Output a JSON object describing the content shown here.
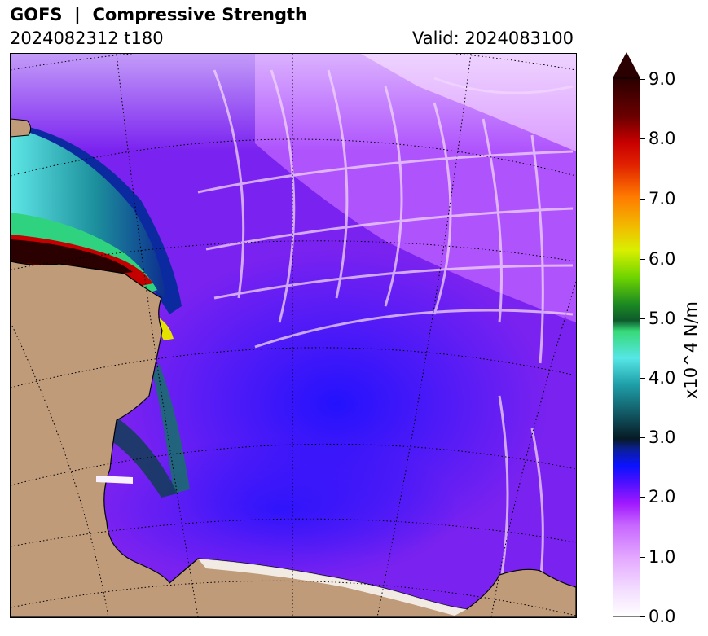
{
  "title": "GOFS  |  Compressive Strength",
  "run": "2024082312 t180",
  "valid": "Valid: 2024083100",
  "colorbar": {
    "label": "x10^4 N/m",
    "ticks": [
      "0.0",
      "1.0",
      "2.0",
      "3.0",
      "4.0",
      "5.0",
      "6.0",
      "7.0",
      "8.0",
      "9.0"
    ],
    "extend": "max",
    "colors": {
      "low": "#ffffff",
      "lavender": "#e3a7ff",
      "violet": "#a019ff",
      "blue": "#0b12ff",
      "teal": "#0f4f5a",
      "green": "#36d977",
      "lime": "#d8ef00",
      "orange": "#ff7a00",
      "red": "#c80000",
      "dark": "#2a0000"
    }
  },
  "map": {
    "land_color": "#bf9b7a",
    "ocean_base_color": "#7a22f0",
    "graticule": "dotted black lines"
  }
}
